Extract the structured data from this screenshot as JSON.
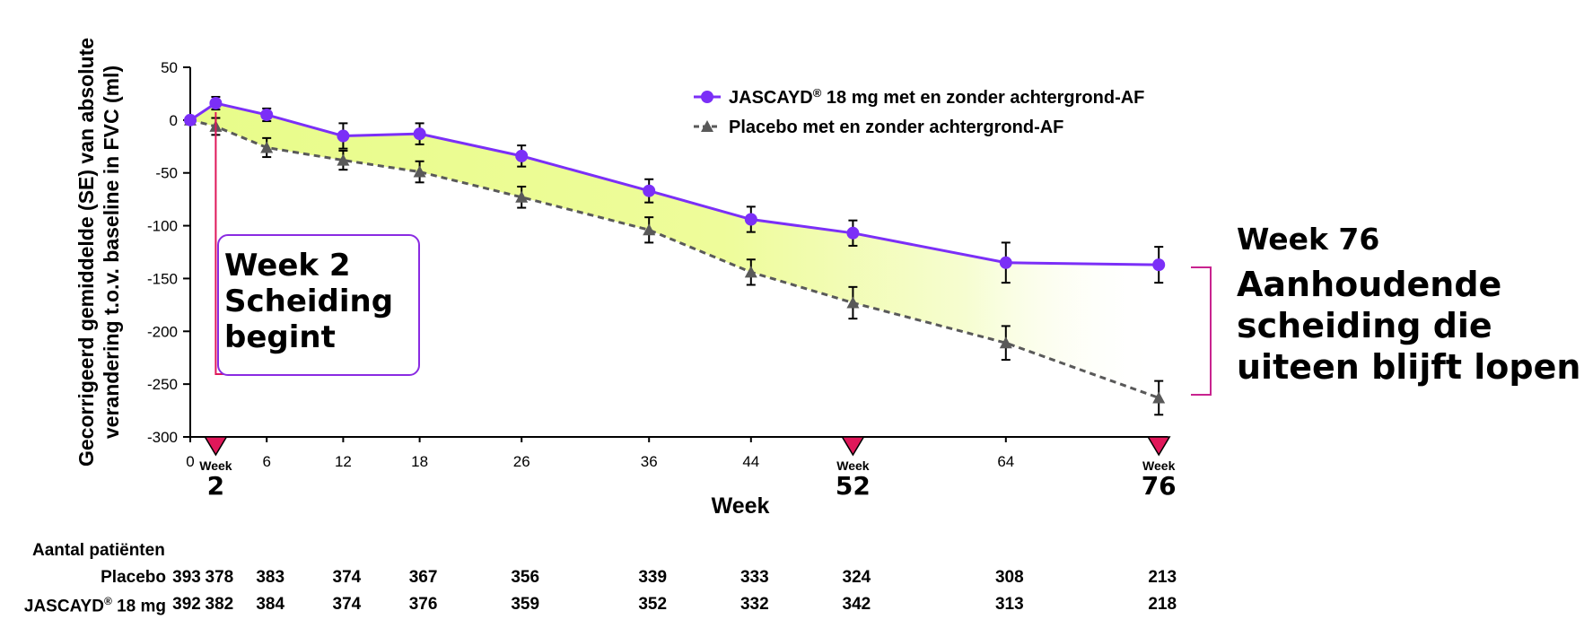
{
  "chart_data": {
    "type": "line",
    "xlabel": "Week",
    "ylabel": "Gecorrigeerd gemiddelde (SE) van absolute verandering t.o.v. baseline in FVC (ml)",
    "ylim": [
      -300,
      50
    ],
    "yticks": [
      50,
      0,
      -50,
      -100,
      -150,
      -200,
      -250,
      -300
    ],
    "xticks": [
      0,
      2,
      6,
      12,
      18,
      26,
      36,
      44,
      52,
      64,
      76
    ],
    "highlighted_weeks": [
      2,
      52,
      76
    ],
    "highlight_prefix": "Week",
    "series": [
      {
        "name": "JASCAYD® 18 mg met en zonder achtergrond-AF",
        "style": "solid",
        "marker": "circle",
        "color": "#7b2ff7",
        "x": [
          0,
          2,
          6,
          12,
          18,
          26,
          36,
          44,
          52,
          64,
          76
        ],
        "values": [
          0,
          16,
          5,
          -15,
          -13,
          -34,
          -67,
          -94,
          -107,
          -135,
          -137
        ],
        "se": [
          0,
          6,
          6,
          12,
          10,
          10,
          11,
          12,
          12,
          19,
          17
        ]
      },
      {
        "name": "Placebo met en zonder achtergrond-AF",
        "style": "dashed",
        "marker": "triangle",
        "color": "#595959",
        "x": [
          0,
          2,
          6,
          12,
          18,
          26,
          36,
          44,
          52,
          64,
          76
        ],
        "values": [
          0,
          -6,
          -26,
          -38,
          -49,
          -73,
          -104,
          -144,
          -173,
          -211,
          -263
        ],
        "se": [
          0,
          8,
          9,
          9,
          10,
          10,
          12,
          12,
          15,
          16,
          16
        ]
      }
    ],
    "fill_color": "#e8fc8a",
    "grid": false,
    "legend_position": "top-right"
  },
  "annotations": {
    "week2_lines": [
      "Week 2",
      "Scheiding",
      "begint"
    ],
    "week76_title": "Week 76",
    "week76_lines": [
      "Aanhoudende",
      "scheiding die",
      "uiteen blijft lopen"
    ],
    "accent_color": "#e0185a"
  },
  "patients_table": {
    "title": "Aantal patiënten",
    "rows": [
      {
        "label": "Placebo",
        "values": [
          393,
          378,
          383,
          374,
          367,
          356,
          339,
          333,
          324,
          308,
          213
        ]
      },
      {
        "label": "JASCAYD® 18 mg",
        "values": [
          392,
          382,
          384,
          374,
          376,
          359,
          352,
          332,
          342,
          313,
          218
        ]
      }
    ]
  }
}
